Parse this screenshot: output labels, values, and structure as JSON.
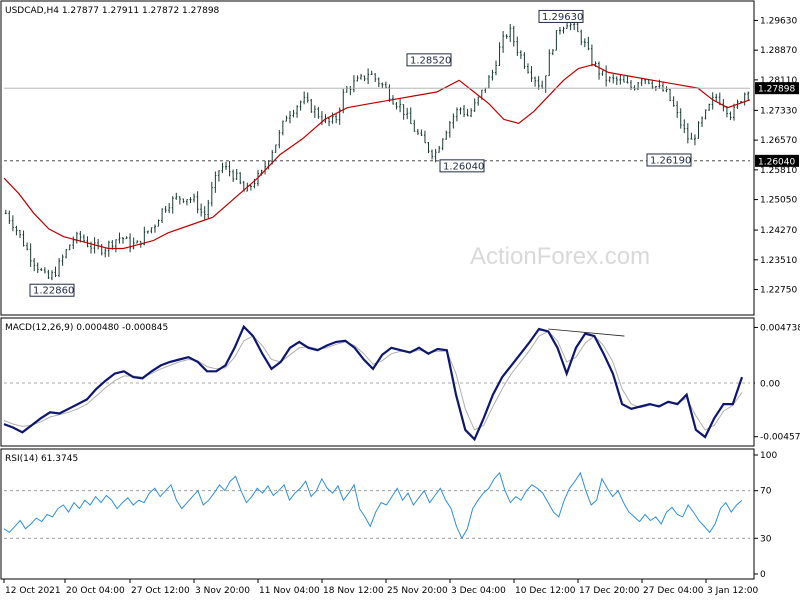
{
  "chart_data": [
    {
      "type": "candlestick",
      "header": "USDCAD,H4  1.27877 1.27911 1.27872 1.27898",
      "ylim": [
        1.2215,
        1.3005
      ],
      "y_ticks": [
        "1.29630",
        "1.28870",
        "1.28110",
        "1.27330",
        "1.26570",
        "1.25810",
        "1.25050",
        "1.24270",
        "1.23510",
        "1.22750"
      ],
      "y_tick_values": [
        1.2963,
        1.2887,
        1.2811,
        1.2733,
        1.2657,
        1.2581,
        1.2505,
        1.2427,
        1.2351,
        1.2275
      ],
      "current_price_label": "1.27898",
      "current_price": 1.27898,
      "support_label": "1.26040",
      "support_level": 1.2604,
      "callouts": [
        {
          "text": "1.22860",
          "value": 1.2286
        },
        {
          "text": "1.28520",
          "value": 1.2852
        },
        {
          "text": "1.26040",
          "value": 1.2604
        },
        {
          "text": "1.29630",
          "value": 1.2963
        },
        {
          "text": "1.26190",
          "value": 1.2619
        }
      ],
      "watermark": "ActionForex.com",
      "close_path": [
        1.247,
        1.244,
        1.24,
        1.236,
        1.233,
        1.23,
        1.232,
        1.236,
        1.24,
        1.241,
        1.239,
        1.238,
        1.238,
        1.24,
        1.241,
        1.239,
        1.239,
        1.242,
        1.244,
        1.248,
        1.25,
        1.251,
        1.251,
        1.25,
        1.246,
        1.253,
        1.259,
        1.258,
        1.256,
        1.252,
        1.255,
        1.257,
        1.262,
        1.266,
        1.272,
        1.274,
        1.276,
        1.274,
        1.272,
        1.27,
        1.271,
        1.278,
        1.28,
        1.281,
        1.283,
        1.281,
        1.279,
        1.276,
        1.274,
        1.27,
        1.267,
        1.264,
        1.262,
        1.267,
        1.271,
        1.274,
        1.272,
        1.275,
        1.279,
        1.283,
        1.29,
        1.294,
        1.289,
        1.285,
        1.282,
        1.279,
        1.288,
        1.294,
        1.296,
        1.294,
        1.291,
        1.286,
        1.283,
        1.281,
        1.281,
        1.28,
        1.279,
        1.282,
        1.281,
        1.279,
        1.278,
        1.274,
        1.269,
        1.265,
        1.269,
        1.273,
        1.277,
        1.275,
        1.272,
        1.276,
        1.279
      ],
      "ma_path": [
        1.256,
        1.252,
        1.247,
        1.243,
        1.241,
        1.24,
        1.239,
        1.238,
        1.238,
        1.239,
        1.24,
        1.242,
        1.244,
        1.246,
        1.251,
        1.256,
        1.262,
        1.266,
        1.271,
        1.274,
        1.275,
        1.276,
        1.277,
        1.278,
        1.281,
        1.278,
        1.275,
        1.271,
        1.27,
        1.273,
        1.277,
        1.281,
        1.284,
        1.285,
        1.283,
        1.282,
        1.281,
        1.28,
        1.279,
        1.276,
        1.274,
        1.276
      ],
      "ma_x_frac": [
        0.0,
        0.02,
        0.04,
        0.06,
        0.08,
        0.1,
        0.12,
        0.14,
        0.16,
        0.18,
        0.2,
        0.22,
        0.25,
        0.28,
        0.31,
        0.34,
        0.37,
        0.4,
        0.43,
        0.46,
        0.49,
        0.52,
        0.55,
        0.58,
        0.61,
        0.63,
        0.65,
        0.67,
        0.69,
        0.71,
        0.73,
        0.75,
        0.77,
        0.79,
        0.81,
        0.84,
        0.87,
        0.9,
        0.93,
        0.95,
        0.97,
        1.0
      ],
      "series": [
        {
          "name": "USDCAD"
        }
      ]
    },
    {
      "type": "line",
      "header": "MACD(12,26,9) 0.000480 -0.000845",
      "ylim": [
        -0.0052,
        0.0052
      ],
      "y_ticks": [
        "0.004738",
        "0.00",
        "-0.004578"
      ],
      "y_tick_values": [
        0.004738,
        0.0,
        -0.004578
      ],
      "current_value_label": "0.00",
      "macd": [
        -0.0035,
        -0.0038,
        -0.0042,
        -0.0036,
        -0.003,
        -0.0025,
        -0.0026,
        -0.0022,
        -0.0018,
        -0.0014,
        -0.0005,
        0.0002,
        0.0008,
        0.001,
        0.0005,
        0.0004,
        0.001,
        0.0015,
        0.0018,
        0.002,
        0.0022,
        0.0018,
        0.001,
        0.001,
        0.0015,
        0.003,
        0.0048,
        0.004,
        0.0025,
        0.0012,
        0.0018,
        0.003,
        0.0035,
        0.003,
        0.0028,
        0.0032,
        0.0035,
        0.0036,
        0.003,
        0.002,
        0.0012,
        0.0024,
        0.003,
        0.0028,
        0.0026,
        0.003,
        0.0025,
        0.0029,
        0.0028,
        -0.001,
        -0.004,
        -0.0048,
        -0.003,
        -0.001,
        0.0005,
        0.0015,
        0.0025,
        0.0035,
        0.0046,
        0.0044,
        0.003,
        0.0008,
        0.003,
        0.0042,
        0.004,
        0.0025,
        0.0008,
        -0.0018,
        -0.0022,
        -0.002,
        -0.0018,
        -0.002,
        -0.0016,
        -0.0018,
        -0.001,
        -0.004,
        -0.0046,
        -0.003,
        -0.0018,
        -0.0018,
        0.0005
      ],
      "signal": [
        -0.0032,
        -0.0035,
        -0.0037,
        -0.0036,
        -0.0033,
        -0.0029,
        -0.0027,
        -0.0025,
        -0.0022,
        -0.0018,
        -0.0011,
        -0.0004,
        0.0002,
        0.0006,
        0.0006,
        0.0005,
        0.0008,
        0.0012,
        0.0015,
        0.0018,
        0.002,
        0.0019,
        0.0014,
        0.0012,
        0.0013,
        0.0022,
        0.0036,
        0.004,
        0.0032,
        0.002,
        0.0018,
        0.0024,
        0.003,
        0.0031,
        0.0029,
        0.003,
        0.0033,
        0.0035,
        0.0032,
        0.0025,
        0.0016,
        0.0019,
        0.0025,
        0.0027,
        0.0026,
        0.0028,
        0.0026,
        0.0027,
        0.0027,
        0.0008,
        -0.0022,
        -0.004,
        -0.0036,
        -0.002,
        -0.0005,
        0.0008,
        0.0018,
        0.0028,
        0.004,
        0.0044,
        0.0036,
        0.0018,
        0.0022,
        0.0034,
        0.004,
        0.0032,
        0.0018,
        -0.0005,
        -0.0018,
        -0.0021,
        -0.0019,
        -0.0019,
        -0.0017,
        -0.0017,
        -0.0013,
        -0.0028,
        -0.004,
        -0.0036,
        -0.0024,
        -0.0019,
        -0.0008
      ],
      "divergence_line": {
        "from": 0.0046,
        "to": 0.004
      },
      "series": [
        {
          "name": "MACD"
        },
        {
          "name": "Signal"
        }
      ]
    },
    {
      "type": "line",
      "header": "RSI(14) 61.3745",
      "ylim": [
        0,
        100
      ],
      "y_ticks": [
        "100",
        "70",
        "30",
        "0"
      ],
      "y_tick_values": [
        100,
        70,
        30,
        0
      ],
      "levels": [
        70,
        30
      ],
      "rsi": [
        38,
        35,
        40,
        45,
        38,
        42,
        47,
        44,
        50,
        48,
        55,
        58,
        52,
        60,
        55,
        62,
        58,
        65,
        60,
        66,
        62,
        55,
        60,
        64,
        58,
        62,
        60,
        68,
        72,
        65,
        70,
        75,
        62,
        55,
        60,
        65,
        70,
        58,
        62,
        68,
        75,
        70,
        78,
        82,
        70,
        60,
        65,
        72,
        68,
        74,
        66,
        70,
        75,
        62,
        68,
        72,
        78,
        65,
        70,
        80,
        72,
        68,
        74,
        62,
        68,
        75,
        55,
        48,
        40,
        52,
        60,
        58,
        65,
        72,
        62,
        68,
        58,
        64,
        70,
        60,
        66,
        72,
        62,
        55,
        40,
        30,
        38,
        55,
        62,
        68,
        72,
        80,
        85,
        70,
        60,
        65,
        62,
        70,
        75,
        72,
        68,
        60,
        52,
        48,
        62,
        72,
        78,
        85,
        70,
        58,
        62,
        80,
        72,
        65,
        70,
        60,
        52,
        48,
        44,
        50,
        45,
        48,
        42,
        52,
        56,
        50,
        48,
        58,
        52,
        45,
        40,
        35,
        42,
        55,
        60,
        52,
        58,
        62
      ]
    }
  ],
  "x_axis": {
    "labels": [
      "12 Oct 2021",
      "20 Oct 04:00",
      "27 Oct 12:00",
      "3 Nov 20:00",
      "11 Nov 04:00",
      "18 Nov 12:00",
      "25 Nov 20:00",
      "3 Dec 04:00",
      "10 Dec 12:00",
      "17 Dec 20:00",
      "27 Dec 04:00",
      "3 Jan 12:00"
    ]
  },
  "colors": {
    "candle": "#1a3a33",
    "ma": "#c00000",
    "macd": "#0d1670",
    "signal": "#b0b0b0",
    "rsi": "#2f8fe0",
    "grid": "#909090",
    "callout_border": "#1f2a44"
  }
}
